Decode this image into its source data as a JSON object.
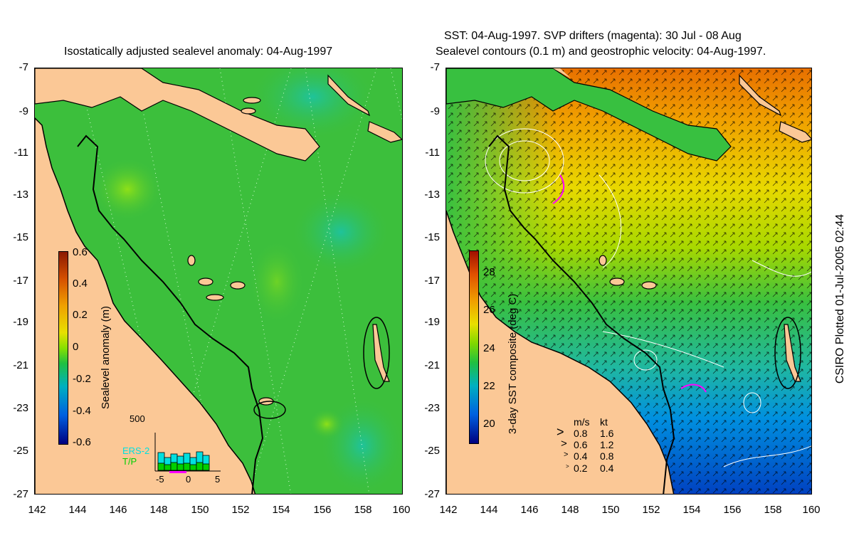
{
  "left": {
    "title": "Isostatically adjusted sealevel anomaly: 04-Aug-1997",
    "colorbar": {
      "label": "Sealevel anomaly (m)",
      "ticks": [
        "0.6",
        "0.4",
        "0.2",
        "0",
        "-0.2",
        "-0.4",
        "-0.6"
      ]
    },
    "histogram": {
      "ymax": "500",
      "legend": [
        "ERS-2",
        "T/P"
      ],
      "xticks": [
        "-5",
        "0",
        "5"
      ],
      "colors": {
        "ers2": "#00e0e0",
        "tp": "#00d000"
      }
    }
  },
  "right": {
    "title_line1": "SST: 04-Aug-1997. SVP drifters (magenta): 30 Jul - 08 Aug",
    "title_line2": "Sealevel contours (0.1 m) and geostrophic velocity: 04-Aug-1997.",
    "colorbar": {
      "label": "3-day SST composite (deg C)",
      "ticks": [
        "28",
        "26",
        "24",
        "22",
        "20"
      ]
    },
    "velocity_legend": {
      "header_ms": "m/s",
      "header_kt": "kt",
      "rows": [
        {
          "ms": "0.8",
          "kt": "1.6"
        },
        {
          "ms": "0.6",
          "kt": "1.2"
        },
        {
          "ms": "0.4",
          "kt": "0.8"
        },
        {
          "ms": "0.2",
          "kt": "0.4"
        }
      ]
    }
  },
  "axes": {
    "lat_ticks": [
      "-7",
      "-9",
      "-11",
      "-13",
      "-15",
      "-17",
      "-19",
      "-21",
      "-23",
      "-25",
      "-27"
    ],
    "lon_ticks": [
      "142",
      "144",
      "146",
      "148",
      "150",
      "152",
      "154",
      "156",
      "158",
      "160"
    ]
  },
  "credit": "CSIRO Plotted 01-Jul-2005 02:44",
  "colors": {
    "land": "#fbc896",
    "ocean_left": "#3cbf3c",
    "coast": "#000000"
  }
}
